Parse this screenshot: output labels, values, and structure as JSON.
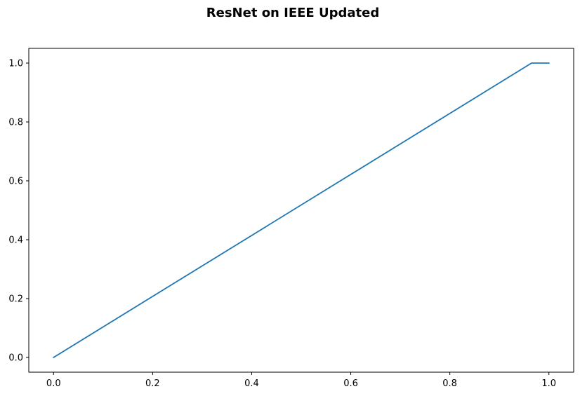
{
  "chart_data": {
    "type": "line",
    "title": "ResNet on IEEE Updated",
    "xlabel": "",
    "ylabel": "",
    "xlim": [
      -0.05,
      1.05
    ],
    "ylim": [
      -0.05,
      1.05
    ],
    "x_ticks": [
      0.0,
      0.2,
      0.4,
      0.6,
      0.8,
      1.0
    ],
    "x_tick_labels": [
      "0.0",
      "0.2",
      "0.4",
      "0.6",
      "0.8",
      "1.0"
    ],
    "y_ticks": [
      0.0,
      0.2,
      0.4,
      0.6,
      0.8,
      1.0
    ],
    "y_tick_labels": [
      "0.0",
      "0.2",
      "0.4",
      "0.6",
      "0.8",
      "1.0"
    ],
    "grid": false,
    "legend": "none",
    "series": [
      {
        "color": "#1f77b4",
        "x": [
          0.0,
          0.965,
          1.0
        ],
        "y": [
          0.0,
          1.0,
          1.0
        ]
      }
    ]
  }
}
